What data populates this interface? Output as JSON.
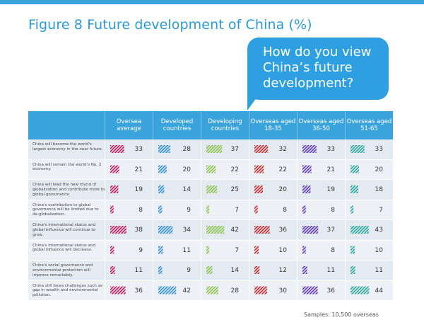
{
  "figure_title": "Figure 8 Future development of China (%)",
  "question_bubble": "How do you view China’s future development?",
  "samples_note": "Samples: 10,500 overseas",
  "colors": {
    "accent": "#3aa3db",
    "series": [
      "#c2185b",
      "#2f8fd1",
      "#8bc34a",
      "#c62828",
      "#5e35b1",
      "#26a69a"
    ]
  },
  "chart_data": {
    "type": "table",
    "title": "Figure 8 Future development of China (%)",
    "columns": [
      "Oversea average",
      "Developed countries",
      "Developing countries",
      "Overseas aged 18-35",
      "Overseas aged 36-50",
      "Overseas aged 51-65"
    ],
    "rows": [
      {
        "label": "China will become the world's largest economy in the near future.",
        "values": [
          33,
          28,
          37,
          32,
          33,
          33
        ]
      },
      {
        "label": "China will remain the world's No. 2 economy.",
        "values": [
          21,
          20,
          22,
          22,
          21,
          20
        ]
      },
      {
        "label": "China will lead the new round of globalization and contribute more to global governance.",
        "values": [
          19,
          14,
          25,
          20,
          19,
          18
        ]
      },
      {
        "label": "China's contribution to global governance will be limited due to de-globalization.",
        "values": [
          8,
          9,
          7,
          8,
          8,
          7
        ]
      },
      {
        "label": "China's international status and global influence will continue to grow.",
        "values": [
          38,
          34,
          42,
          36,
          37,
          43
        ]
      },
      {
        "label": "China's international status and global influence will decrease.",
        "values": [
          9,
          11,
          7,
          10,
          8,
          10
        ]
      },
      {
        "label": "China's social governance and environmental protection will improve remarkably.",
        "values": [
          11,
          9,
          14,
          12,
          11,
          11
        ]
      },
      {
        "label": "China still faces challenges such as gap in wealth and environmental pollution.",
        "values": [
          36,
          42,
          28,
          30,
          36,
          44
        ]
      }
    ]
  }
}
